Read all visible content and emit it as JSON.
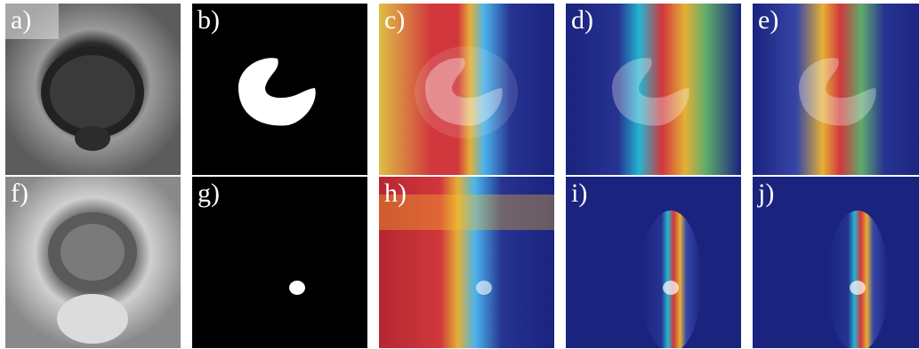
{
  "panels": [
    {
      "id": "a",
      "label": "a)"
    },
    {
      "id": "b",
      "label": "b)"
    },
    {
      "id": "c",
      "label": "c)"
    },
    {
      "id": "d",
      "label": "d)"
    },
    {
      "id": "e",
      "label": "e)"
    },
    {
      "id": "f",
      "label": "f)"
    },
    {
      "id": "g",
      "label": "g)"
    },
    {
      "id": "h",
      "label": "h)"
    },
    {
      "id": "i",
      "label": "i)"
    },
    {
      "id": "j",
      "label": "j)"
    }
  ],
  "colors": {
    "background": "#ffffff",
    "heatmap_low": "#1a237e",
    "heatmap_mid": "#ffeb3b",
    "heatmap_high": "#d32f2f"
  }
}
